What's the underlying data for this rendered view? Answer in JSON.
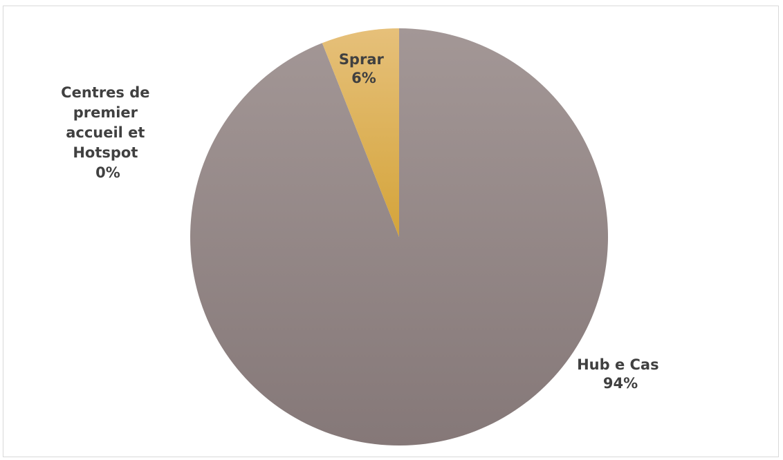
{
  "chart_data": {
    "type": "pie",
    "title": "",
    "categories": [
      "Hub e Cas",
      "Sprar",
      "Centres de premier accueil et Hotspot"
    ],
    "values": [
      94,
      6,
      0
    ],
    "labels": [
      {
        "name": "Hub e Cas",
        "percent": "94%"
      },
      {
        "name": "Sprar",
        "percent": "6%"
      },
      {
        "name": "Centres de premier accueil et Hotspot",
        "percent": "0%"
      }
    ],
    "colors": {
      "Hub e Cas": [
        "#a39796",
        "#857878"
      ],
      "Sprar": [
        "#e6c07a",
        "#d4a43a"
      ],
      "Centres de premier accueil et Hotspot": [
        "#8c8c8c",
        "#8c8c8c"
      ]
    },
    "start_angle_deg": 0,
    "direction": "clockwise",
    "legend": "none"
  }
}
